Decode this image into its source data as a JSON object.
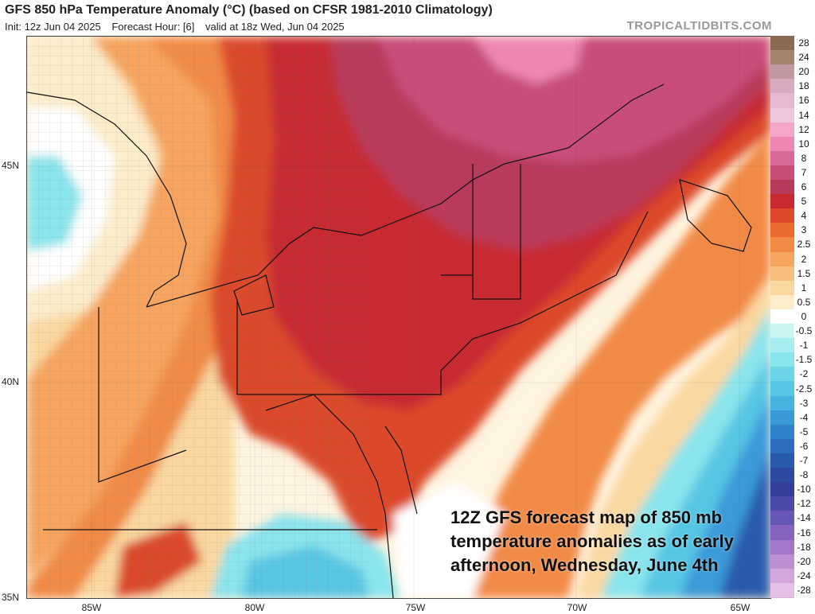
{
  "header": {
    "title": "GFS 850 hPa Temperature Anomaly (°C) (based on CFSR 1981-2010 Climatology)",
    "init": "Init: 12z Jun 04 2025",
    "forecast_hour": "Forecast Hour: [6]",
    "valid": "valid at 18z Wed, Jun 04 2025"
  },
  "watermark": "TROPICALTIDBITS.COM",
  "axes": {
    "lat_labels": [
      "45N",
      "40N",
      "35N"
    ],
    "lon_labels": [
      "85W",
      "80W",
      "75W",
      "70W",
      "65W"
    ]
  },
  "colorbar": {
    "labels": [
      "28",
      "24",
      "20",
      "18",
      "16",
      "14",
      "12",
      "10",
      "8",
      "7",
      "6",
      "5",
      "4",
      "3",
      "2.5",
      "2",
      "1.5",
      "1",
      "0.5",
      "0",
      "-0.5",
      "-1",
      "-1.5",
      "-2",
      "-2.5",
      "-3",
      "-4",
      "-5",
      "-6",
      "-7",
      "-8",
      "-10",
      "-12",
      "-14",
      "-16",
      "-18",
      "-20",
      "-24",
      "-28"
    ],
    "colors": [
      "#8a6a52",
      "#a58470",
      "#c09aa0",
      "#d7aac0",
      "#e6b8d2",
      "#f0c8de",
      "#f3a6c8",
      "#ee86b4",
      "#d86a98",
      "#c84e7a",
      "#b83a5a",
      "#c82a30",
      "#dc4a2a",
      "#ea6a30",
      "#f28a46",
      "#f6a45e",
      "#f8be7e",
      "#fad8a0",
      "#fcecca",
      "#ffffff",
      "#c8f4f4",
      "#a8eef0",
      "#8ae4ec",
      "#6cd6e8",
      "#56c6e4",
      "#46b2e0",
      "#3a9ad8",
      "#3282cc",
      "#2c6cbc",
      "#2a5aac",
      "#2c4aa0",
      "#34409a",
      "#4c4aa8",
      "#6856b4",
      "#8464be",
      "#a276c8",
      "#bc8ed2",
      "#d2a6dc",
      "#e4c0e6"
    ]
  },
  "annotation": {
    "lines": [
      "12Z GFS forecast map of 850 mb",
      "temperature anomalies as of early",
      "afternoon, Wednesday, June 4th"
    ]
  },
  "colors": {
    "ocean_cold": "#3e7ad0",
    "deep_blue": "#2c5aac",
    "anomaly_warm": "#dc4a2a",
    "anomaly_hot": "#c82a30",
    "anomaly_magenta": "#b83a5a"
  }
}
